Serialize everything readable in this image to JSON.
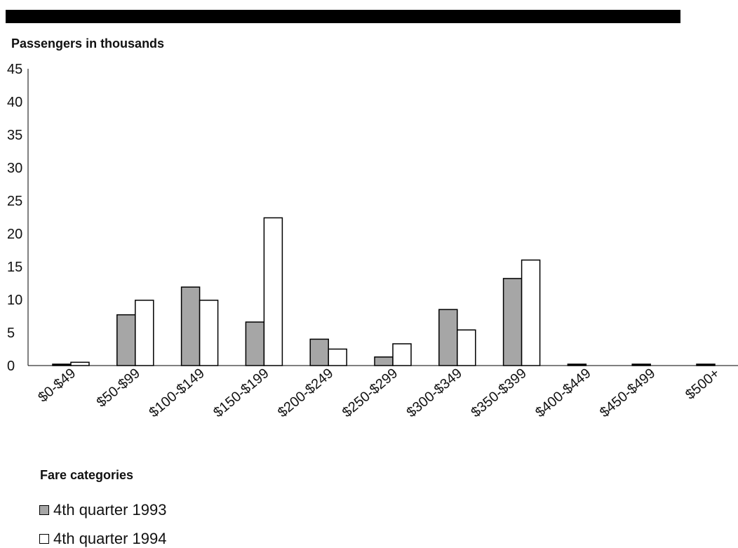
{
  "chart_data": {
    "type": "bar",
    "ylabel": "Passengers in thousands",
    "xlabel": "Fare categories",
    "ylim": [
      0,
      45
    ],
    "yticks": [
      0,
      5,
      10,
      15,
      20,
      25,
      30,
      35,
      40,
      45
    ],
    "categories": [
      "$0-$49",
      "$50-$99",
      "$100-$149",
      "$150-$199",
      "$200-$249",
      "$250-$299",
      "$300-$349",
      "$350-$399",
      "$400-$449",
      "$450-$499",
      "$500+"
    ],
    "series": [
      {
        "name": "4th quarter 1993",
        "color": "#a6a6a6",
        "values": [
          0.1,
          7.7,
          11.9,
          6.6,
          4.0,
          1.3,
          8.5,
          13.2,
          0.1,
          0.1,
          0.1
        ]
      },
      {
        "name": "4th quarter 1994",
        "color": "#ffffff",
        "values": [
          0.5,
          9.9,
          9.9,
          22.4,
          2.5,
          3.3,
          5.4,
          16.0,
          0,
          0,
          0
        ]
      }
    ],
    "grid": false,
    "legend_position": "bottom-left"
  }
}
